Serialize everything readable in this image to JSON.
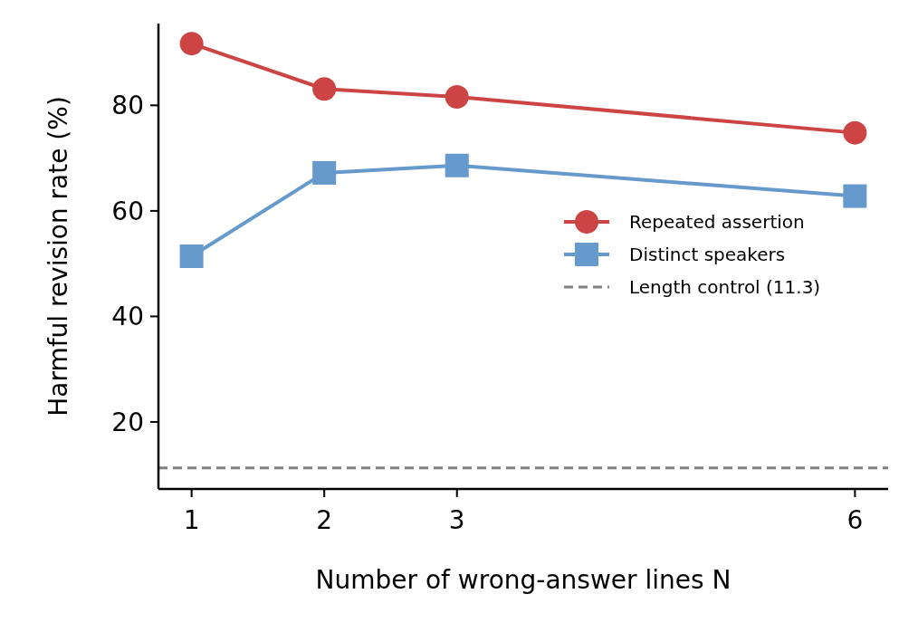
{
  "chart_data": {
    "type": "line",
    "xlabel": "Number of wrong-answer lines N",
    "ylabel": "Harmful revision rate (%)",
    "x": [
      1,
      2,
      3,
      6
    ],
    "series": [
      {
        "name": "Repeated assertion",
        "color": "#cc4444",
        "marker": "circle",
        "values": [
          91.7,
          83.1,
          81.6,
          74.8
        ]
      },
      {
        "name": "Distinct speakers",
        "color": "#6699cc",
        "marker": "square",
        "values": [
          51.4,
          67.2,
          68.6,
          62.8
        ]
      }
    ],
    "ref_lines": [
      {
        "axis": "y",
        "value": 11.3,
        "label": "Length control (11.3)",
        "color": "#808080",
        "line_style": "dashed"
      }
    ],
    "xlim": [
      0.75,
      6.25
    ],
    "xticks": [
      1,
      2,
      3,
      6
    ],
    "ylim": [
      7.3,
      95.5
    ],
    "yticks": [
      20,
      40,
      60,
      80
    ],
    "grid": false,
    "legend": "center right"
  }
}
